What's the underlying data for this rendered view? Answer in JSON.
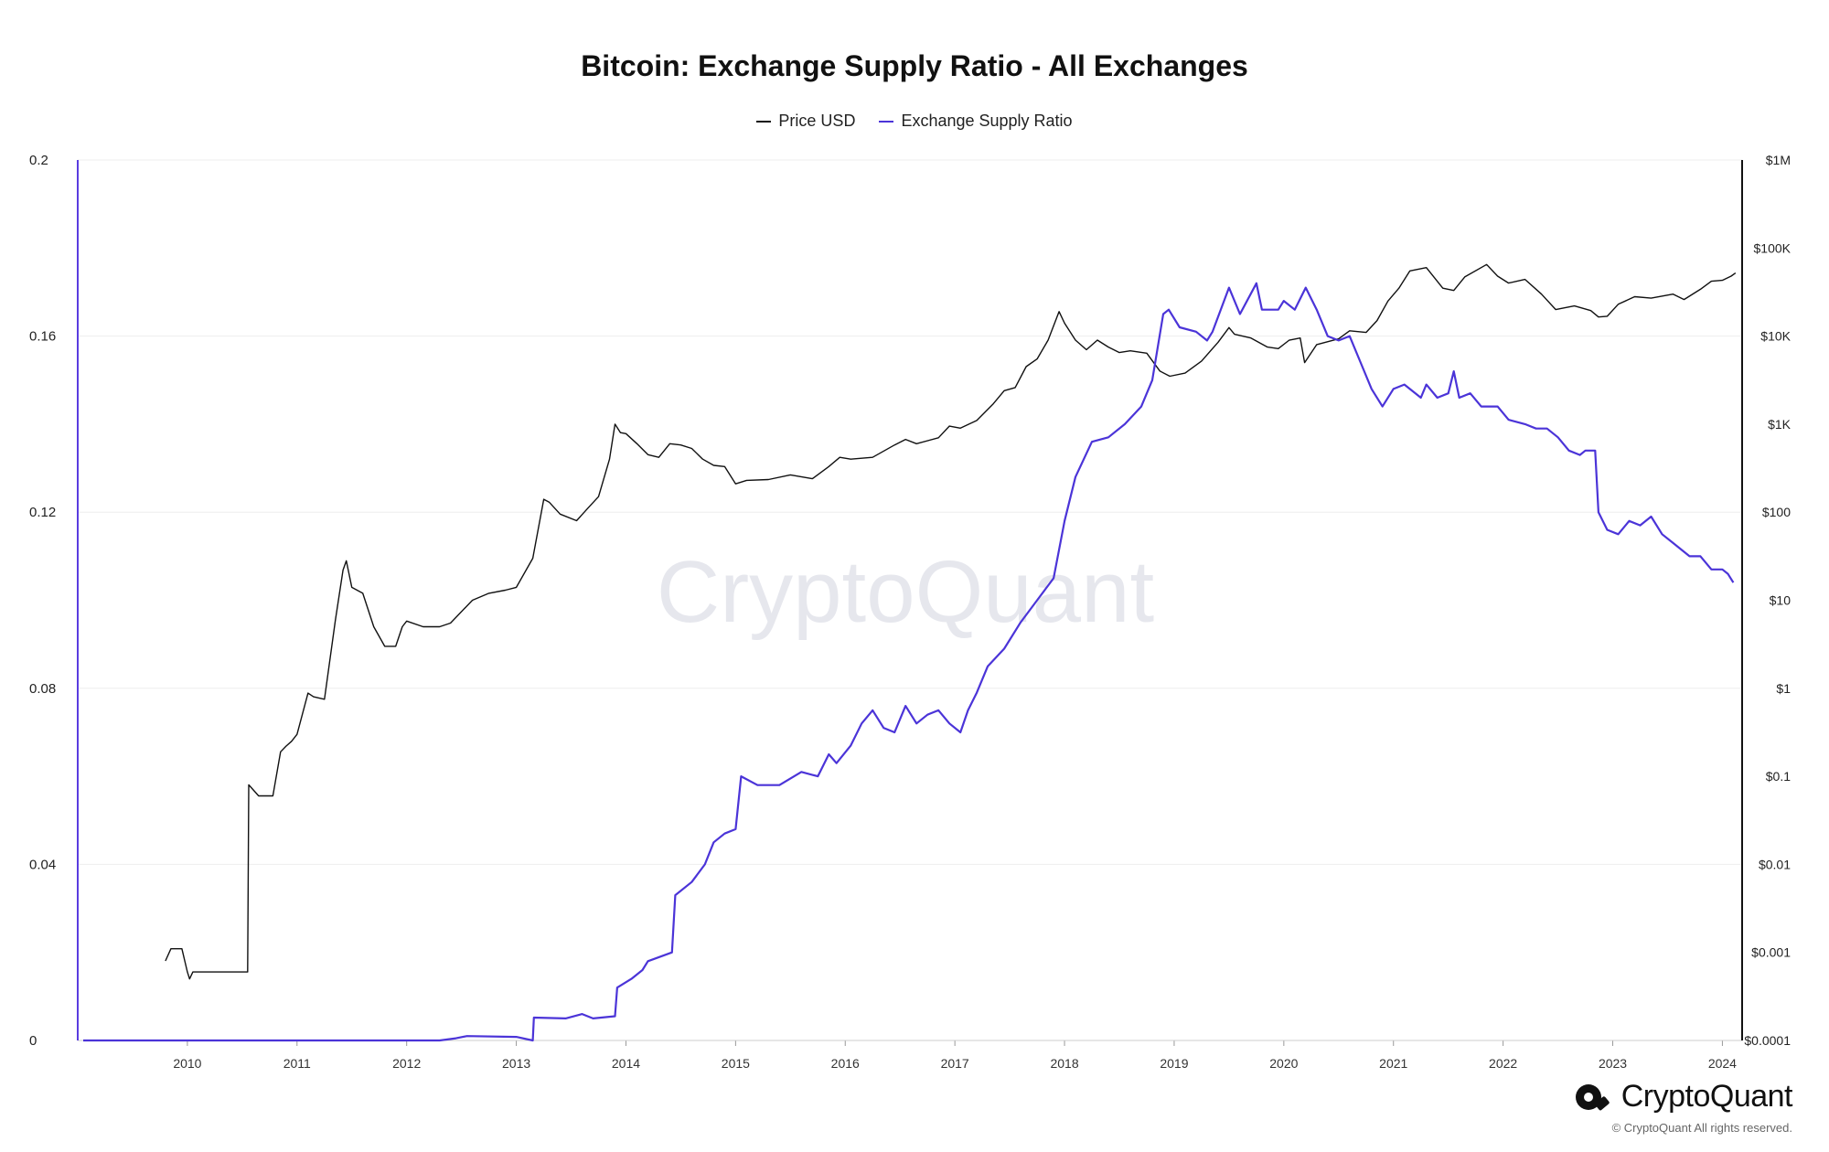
{
  "title": "Bitcoin: Exchange Supply Ratio - All Exchanges",
  "legend": [
    {
      "label": "Price USD",
      "color": "#111111"
    },
    {
      "label": "Exchange Supply Ratio",
      "color": "#4b34d8"
    }
  ],
  "watermark": "CryptoQuant",
  "brand": {
    "name": "CryptoQuant",
    "copyright": "© CryptoQuant All rights reserved."
  },
  "colors": {
    "price": "#111111",
    "ratio": "#4b34d8",
    "left_axis": "#5a3de0",
    "grid": "#eeeeee"
  },
  "chart_data": {
    "type": "line",
    "title": "Bitcoin: Exchange Supply Ratio - All Exchanges",
    "x_ticks": [
      "2010",
      "2011",
      "2012",
      "2013",
      "2014",
      "2015",
      "2016",
      "2017",
      "2018",
      "2019",
      "2020",
      "2021",
      "2022",
      "2023",
      "2024"
    ],
    "y_left": {
      "ticks": [
        "0",
        "0.04",
        "0.08",
        "0.12",
        "0.16",
        "0.2"
      ],
      "ylim": [
        0,
        0.2
      ]
    },
    "y_right": {
      "scale": "log",
      "ticks": [
        "$0.0001",
        "$0.001",
        "$0.01",
        "$0.1",
        "$1",
        "$10",
        "$100",
        "$1K",
        "$10K",
        "$100K",
        "$1M"
      ],
      "ylim": [
        0.0001,
        1000000
      ]
    },
    "grid": true,
    "legend_position": "top-center",
    "series": [
      {
        "name": "Price USD",
        "axis": "right",
        "color": "#111111",
        "points": [
          [
            2009.8,
            0.0008
          ],
          [
            2009.85,
            0.0011
          ],
          [
            2009.95,
            0.0011
          ],
          [
            2010.0,
            0.0006
          ],
          [
            2010.02,
            0.0005
          ],
          [
            2010.05,
            0.0006
          ],
          [
            2010.55,
            0.0006
          ],
          [
            2010.56,
            0.08
          ],
          [
            2010.65,
            0.06
          ],
          [
            2010.78,
            0.06
          ],
          [
            2010.85,
            0.19
          ],
          [
            2010.9,
            0.22
          ],
          [
            2010.95,
            0.25
          ],
          [
            2011.0,
            0.3
          ],
          [
            2011.1,
            0.88
          ],
          [
            2011.15,
            0.8
          ],
          [
            2011.25,
            0.75
          ],
          [
            2011.35,
            6
          ],
          [
            2011.42,
            22
          ],
          [
            2011.45,
            28
          ],
          [
            2011.5,
            14
          ],
          [
            2011.6,
            12
          ],
          [
            2011.7,
            5
          ],
          [
            2011.8,
            3
          ],
          [
            2011.9,
            3
          ],
          [
            2011.96,
            5
          ],
          [
            2012.0,
            5.8
          ],
          [
            2012.15,
            5
          ],
          [
            2012.3,
            5
          ],
          [
            2012.4,
            5.5
          ],
          [
            2012.6,
            10
          ],
          [
            2012.75,
            12
          ],
          [
            2012.9,
            13
          ],
          [
            2013.0,
            14
          ],
          [
            2013.15,
            30
          ],
          [
            2013.25,
            140
          ],
          [
            2013.3,
            130
          ],
          [
            2013.4,
            95
          ],
          [
            2013.55,
            80
          ],
          [
            2013.65,
            110
          ],
          [
            2013.75,
            150
          ],
          [
            2013.85,
            400
          ],
          [
            2013.9,
            1000
          ],
          [
            2013.95,
            800
          ],
          [
            2014.0,
            780
          ],
          [
            2014.1,
            600
          ],
          [
            2014.2,
            450
          ],
          [
            2014.3,
            420
          ],
          [
            2014.4,
            600
          ],
          [
            2014.5,
            580
          ],
          [
            2014.6,
            530
          ],
          [
            2014.7,
            400
          ],
          [
            2014.8,
            340
          ],
          [
            2014.9,
            330
          ],
          [
            2015.0,
            210
          ],
          [
            2015.1,
            230
          ],
          [
            2015.3,
            235
          ],
          [
            2015.5,
            265
          ],
          [
            2015.7,
            240
          ],
          [
            2015.85,
            330
          ],
          [
            2015.95,
            420
          ],
          [
            2016.05,
            400
          ],
          [
            2016.25,
            420
          ],
          [
            2016.45,
            580
          ],
          [
            2016.55,
            670
          ],
          [
            2016.65,
            600
          ],
          [
            2016.85,
            700
          ],
          [
            2016.95,
            950
          ],
          [
            2017.05,
            900
          ],
          [
            2017.2,
            1100
          ],
          [
            2017.35,
            1700
          ],
          [
            2017.45,
            2400
          ],
          [
            2017.55,
            2600
          ],
          [
            2017.65,
            4500
          ],
          [
            2017.75,
            5500
          ],
          [
            2017.85,
            9000
          ],
          [
            2017.95,
            19000
          ],
          [
            2018.0,
            14000
          ],
          [
            2018.1,
            9000
          ],
          [
            2018.2,
            7000
          ],
          [
            2018.3,
            9000
          ],
          [
            2018.4,
            7500
          ],
          [
            2018.5,
            6500
          ],
          [
            2018.6,
            6800
          ],
          [
            2018.75,
            6400
          ],
          [
            2018.87,
            4000
          ],
          [
            2018.96,
            3500
          ],
          [
            2019.1,
            3800
          ],
          [
            2019.25,
            5200
          ],
          [
            2019.4,
            8500
          ],
          [
            2019.5,
            12500
          ],
          [
            2019.55,
            10500
          ],
          [
            2019.7,
            9500
          ],
          [
            2019.85,
            7500
          ],
          [
            2019.95,
            7200
          ],
          [
            2020.05,
            9000
          ],
          [
            2020.15,
            9500
          ],
          [
            2020.19,
            5000
          ],
          [
            2020.3,
            8000
          ],
          [
            2020.5,
            9300
          ],
          [
            2020.6,
            11500
          ],
          [
            2020.75,
            11000
          ],
          [
            2020.85,
            15000
          ],
          [
            2020.95,
            25000
          ],
          [
            2021.05,
            35000
          ],
          [
            2021.15,
            55000
          ],
          [
            2021.3,
            60000
          ],
          [
            2021.45,
            35000
          ],
          [
            2021.55,
            33000
          ],
          [
            2021.65,
            47000
          ],
          [
            2021.85,
            65000
          ],
          [
            2021.95,
            48000
          ],
          [
            2022.05,
            40000
          ],
          [
            2022.2,
            44000
          ],
          [
            2022.35,
            30000
          ],
          [
            2022.48,
            20000
          ],
          [
            2022.65,
            22000
          ],
          [
            2022.8,
            19500
          ],
          [
            2022.87,
            16500
          ],
          [
            2022.95,
            16800
          ],
          [
            2023.05,
            23000
          ],
          [
            2023.2,
            28000
          ],
          [
            2023.35,
            27000
          ],
          [
            2023.55,
            30000
          ],
          [
            2023.65,
            26000
          ],
          [
            2023.8,
            34000
          ],
          [
            2023.9,
            42000
          ],
          [
            2024.0,
            43000
          ],
          [
            2024.08,
            48000
          ],
          [
            2024.12,
            52000
          ]
        ]
      },
      {
        "name": "Exchange Supply Ratio",
        "axis": "left",
        "color": "#4b34d8",
        "points": [
          [
            2009.05,
            0.0
          ],
          [
            2012.3,
            0.0
          ],
          [
            2012.45,
            0.0005
          ],
          [
            2012.55,
            0.001
          ],
          [
            2013.0,
            0.0008
          ],
          [
            2013.15,
            0.0
          ],
          [
            2013.16,
            0.0052
          ],
          [
            2013.45,
            0.005
          ],
          [
            2013.6,
            0.006
          ],
          [
            2013.7,
            0.005
          ],
          [
            2013.9,
            0.0055
          ],
          [
            2013.92,
            0.012
          ],
          [
            2014.05,
            0.014
          ],
          [
            2014.15,
            0.016
          ],
          [
            2014.2,
            0.018
          ],
          [
            2014.42,
            0.02
          ],
          [
            2014.45,
            0.033
          ],
          [
            2014.6,
            0.036
          ],
          [
            2014.72,
            0.04
          ],
          [
            2014.8,
            0.045
          ],
          [
            2014.9,
            0.047
          ],
          [
            2015.0,
            0.048
          ],
          [
            2015.05,
            0.06
          ],
          [
            2015.2,
            0.058
          ],
          [
            2015.4,
            0.058
          ],
          [
            2015.6,
            0.061
          ],
          [
            2015.75,
            0.06
          ],
          [
            2015.85,
            0.065
          ],
          [
            2015.92,
            0.063
          ],
          [
            2016.05,
            0.067
          ],
          [
            2016.15,
            0.072
          ],
          [
            2016.25,
            0.075
          ],
          [
            2016.35,
            0.071
          ],
          [
            2016.45,
            0.07
          ],
          [
            2016.55,
            0.076
          ],
          [
            2016.65,
            0.072
          ],
          [
            2016.75,
            0.074
          ],
          [
            2016.85,
            0.075
          ],
          [
            2016.95,
            0.072
          ],
          [
            2017.05,
            0.07
          ],
          [
            2017.12,
            0.075
          ],
          [
            2017.2,
            0.079
          ],
          [
            2017.3,
            0.085
          ],
          [
            2017.45,
            0.089
          ],
          [
            2017.6,
            0.095
          ],
          [
            2017.75,
            0.1
          ],
          [
            2017.9,
            0.105
          ],
          [
            2018.0,
            0.118
          ],
          [
            2018.1,
            0.128
          ],
          [
            2018.25,
            0.136
          ],
          [
            2018.4,
            0.137
          ],
          [
            2018.55,
            0.14
          ],
          [
            2018.7,
            0.144
          ],
          [
            2018.8,
            0.15
          ],
          [
            2018.9,
            0.165
          ],
          [
            2018.95,
            0.166
          ],
          [
            2019.05,
            0.162
          ],
          [
            2019.2,
            0.161
          ],
          [
            2019.3,
            0.159
          ],
          [
            2019.35,
            0.161
          ],
          [
            2019.5,
            0.171
          ],
          [
            2019.6,
            0.165
          ],
          [
            2019.75,
            0.172
          ],
          [
            2019.8,
            0.166
          ],
          [
            2019.95,
            0.166
          ],
          [
            2020.0,
            0.168
          ],
          [
            2020.1,
            0.166
          ],
          [
            2020.2,
            0.171
          ],
          [
            2020.3,
            0.166
          ],
          [
            2020.4,
            0.16
          ],
          [
            2020.5,
            0.159
          ],
          [
            2020.6,
            0.16
          ],
          [
            2020.7,
            0.154
          ],
          [
            2020.8,
            0.148
          ],
          [
            2020.9,
            0.144
          ],
          [
            2021.0,
            0.148
          ],
          [
            2021.1,
            0.149
          ],
          [
            2021.25,
            0.146
          ],
          [
            2021.3,
            0.149
          ],
          [
            2021.4,
            0.146
          ],
          [
            2021.5,
            0.147
          ],
          [
            2021.55,
            0.152
          ],
          [
            2021.6,
            0.146
          ],
          [
            2021.7,
            0.147
          ],
          [
            2021.8,
            0.144
          ],
          [
            2021.95,
            0.144
          ],
          [
            2022.05,
            0.141
          ],
          [
            2022.2,
            0.14
          ],
          [
            2022.3,
            0.139
          ],
          [
            2022.4,
            0.139
          ],
          [
            2022.5,
            0.137
          ],
          [
            2022.6,
            0.134
          ],
          [
            2022.7,
            0.133
          ],
          [
            2022.75,
            0.134
          ],
          [
            2022.84,
            0.134
          ],
          [
            2022.87,
            0.12
          ],
          [
            2022.95,
            0.116
          ],
          [
            2023.05,
            0.115
          ],
          [
            2023.15,
            0.118
          ],
          [
            2023.25,
            0.117
          ],
          [
            2023.35,
            0.119
          ],
          [
            2023.45,
            0.115
          ],
          [
            2023.55,
            0.113
          ],
          [
            2023.7,
            0.11
          ],
          [
            2023.8,
            0.11
          ],
          [
            2023.9,
            0.107
          ],
          [
            2024.0,
            0.107
          ],
          [
            2024.05,
            0.106
          ],
          [
            2024.1,
            0.104
          ]
        ]
      }
    ]
  }
}
